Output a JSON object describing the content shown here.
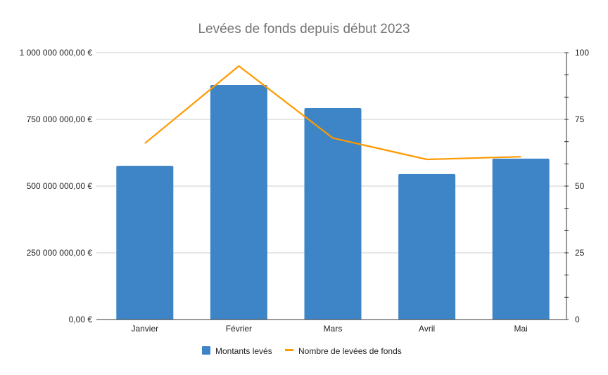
{
  "chart_data": {
    "type": "bar+line",
    "title": "Levées de fonds depuis début 2023",
    "categories": [
      "Janvier",
      "Février",
      "Mars",
      "Avril",
      "Mai"
    ],
    "series": [
      {
        "name": "Montants levés",
        "type": "bar",
        "axis": "left",
        "color": "#3d85c6",
        "values": [
          576000000,
          879000000,
          792000000,
          545000000,
          603000000
        ]
      },
      {
        "name": "Nombre de levées de fonds",
        "type": "line",
        "axis": "right",
        "color": "#ff9900",
        "values": [
          66,
          95,
          68,
          60,
          61
        ]
      }
    ],
    "left_axis": {
      "ylim": [
        0,
        1000000000
      ],
      "ticks": [
        0,
        250000000,
        500000000,
        750000000,
        1000000000
      ],
      "tick_labels": [
        "0,00 €",
        "250 000 000,00 €",
        "500 000 000,00 €",
        "750 000 000,00 €",
        "1 000 000 000,00 €"
      ]
    },
    "right_axis": {
      "ylim": [
        0,
        100
      ],
      "ticks": [
        0,
        25,
        50,
        75,
        100
      ],
      "tick_labels": [
        "0",
        "25",
        "50",
        "75",
        "100"
      ]
    },
    "xlabel": "",
    "ylabel": "",
    "grid": true,
    "legend_position": "bottom"
  }
}
